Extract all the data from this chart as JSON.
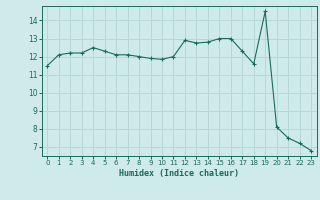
{
  "x": [
    0,
    1,
    2,
    3,
    4,
    5,
    6,
    7,
    8,
    9,
    10,
    11,
    12,
    13,
    14,
    15,
    16,
    17,
    18,
    19,
    20,
    21,
    22,
    23
  ],
  "y": [
    11.5,
    12.1,
    12.2,
    12.2,
    12.5,
    12.3,
    12.1,
    12.1,
    12.0,
    11.9,
    11.85,
    12.0,
    12.9,
    12.75,
    12.8,
    13.0,
    13.0,
    12.3,
    11.6,
    14.5,
    8.1,
    7.5,
    7.2,
    6.8
  ],
  "line_color": "#1a6b5c",
  "marker": "+",
  "marker_size": 3,
  "bg_color": "#ceeaea",
  "grid_color": "#b8d8d8",
  "xlabel": "Humidex (Indice chaleur)",
  "xlim": [
    -0.5,
    23.5
  ],
  "ylim": [
    6.5,
    14.8
  ],
  "yticks": [
    7,
    8,
    9,
    10,
    11,
    12,
    13,
    14
  ],
  "xticks": [
    0,
    1,
    2,
    3,
    4,
    5,
    6,
    7,
    8,
    9,
    10,
    11,
    12,
    13,
    14,
    15,
    16,
    17,
    18,
    19,
    20,
    21,
    22,
    23
  ],
  "tick_color": "#1a6b5c",
  "label_color": "#1a6b5c",
  "spine_color": "#1a6b5c"
}
